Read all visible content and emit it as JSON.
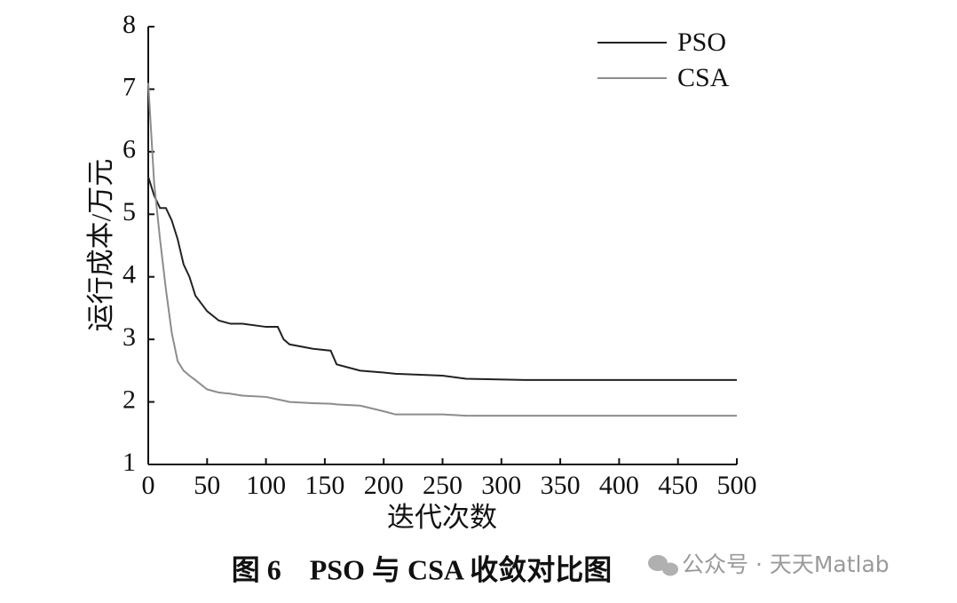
{
  "chart_data": {
    "type": "line",
    "ylabel": "运行成本/万元",
    "xlabel": "迭代次数",
    "caption": "图 6　PSO 与 CSA 收敛对比图",
    "watermark": "公众号 · 天天Matlab",
    "x": [
      0,
      5,
      10,
      15,
      20,
      25,
      30,
      35,
      40,
      50,
      60,
      70,
      80,
      100,
      110,
      115,
      120,
      140,
      155,
      160,
      180,
      200,
      210,
      250,
      270,
      320,
      400,
      500
    ],
    "series": [
      {
        "name": "PSO",
        "color": "#222222",
        "values": [
          5.6,
          5.3,
          5.1,
          5.1,
          4.9,
          4.6,
          4.2,
          4.0,
          3.7,
          3.45,
          3.3,
          3.25,
          3.25,
          3.2,
          3.2,
          3.0,
          2.92,
          2.85,
          2.82,
          2.6,
          2.5,
          2.47,
          2.45,
          2.42,
          2.37,
          2.35,
          2.35,
          2.35
        ]
      },
      {
        "name": "CSA",
        "color": "#8c8c8c",
        "values": [
          7.1,
          5.5,
          4.6,
          3.8,
          3.1,
          2.65,
          2.5,
          2.42,
          2.35,
          2.2,
          2.15,
          2.13,
          2.1,
          2.08,
          2.04,
          2.02,
          2.0,
          1.98,
          1.97,
          1.96,
          1.94,
          1.85,
          1.8,
          1.8,
          1.78,
          1.78,
          1.78,
          1.78
        ]
      }
    ],
    "xlim": [
      0,
      500
    ],
    "xticks": [
      0,
      50,
      100,
      150,
      200,
      250,
      300,
      350,
      400,
      450,
      500
    ],
    "ylim": [
      1,
      8
    ],
    "yticks": [
      1,
      2,
      3,
      4,
      5,
      6,
      7,
      8
    ],
    "legend": "top-right"
  }
}
